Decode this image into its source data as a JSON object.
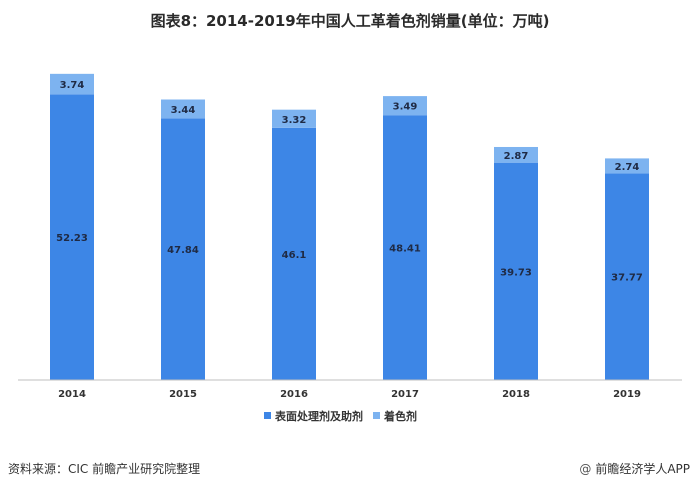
{
  "chart_data": {
    "type": "bar",
    "stacked": true,
    "title": "图表8：2014-2019年中国人工革着色剂销量(单位：万吨)",
    "categories": [
      "2014",
      "2015",
      "2016",
      "2017",
      "2018",
      "2019"
    ],
    "series": [
      {
        "name": "表面处理剂及助剂",
        "values": [
          52.23,
          47.84,
          46.1,
          48.41,
          39.73,
          37.77
        ],
        "color": "#3d86e6"
      },
      {
        "name": "着色剂",
        "values": [
          3.74,
          3.44,
          3.32,
          3.49,
          2.87,
          2.74
        ],
        "color": "#7db3f0"
      }
    ],
    "value_labels": {
      "s0": [
        "52.23",
        "47.84",
        "46.1",
        "48.41",
        "39.73",
        "37.77"
      ],
      "s1": [
        "3.74",
        "3.44",
        "3.32",
        "3.49",
        "2.87",
        "2.74"
      ]
    },
    "grid": false,
    "legend_position": "bottom"
  },
  "footer": {
    "source": "资料来源：CIC 前瞻产业研究院整理",
    "brand_at": "@",
    "brand": "前瞻经济学人APP"
  },
  "colors": {
    "axis": "#bfbfbf"
  }
}
